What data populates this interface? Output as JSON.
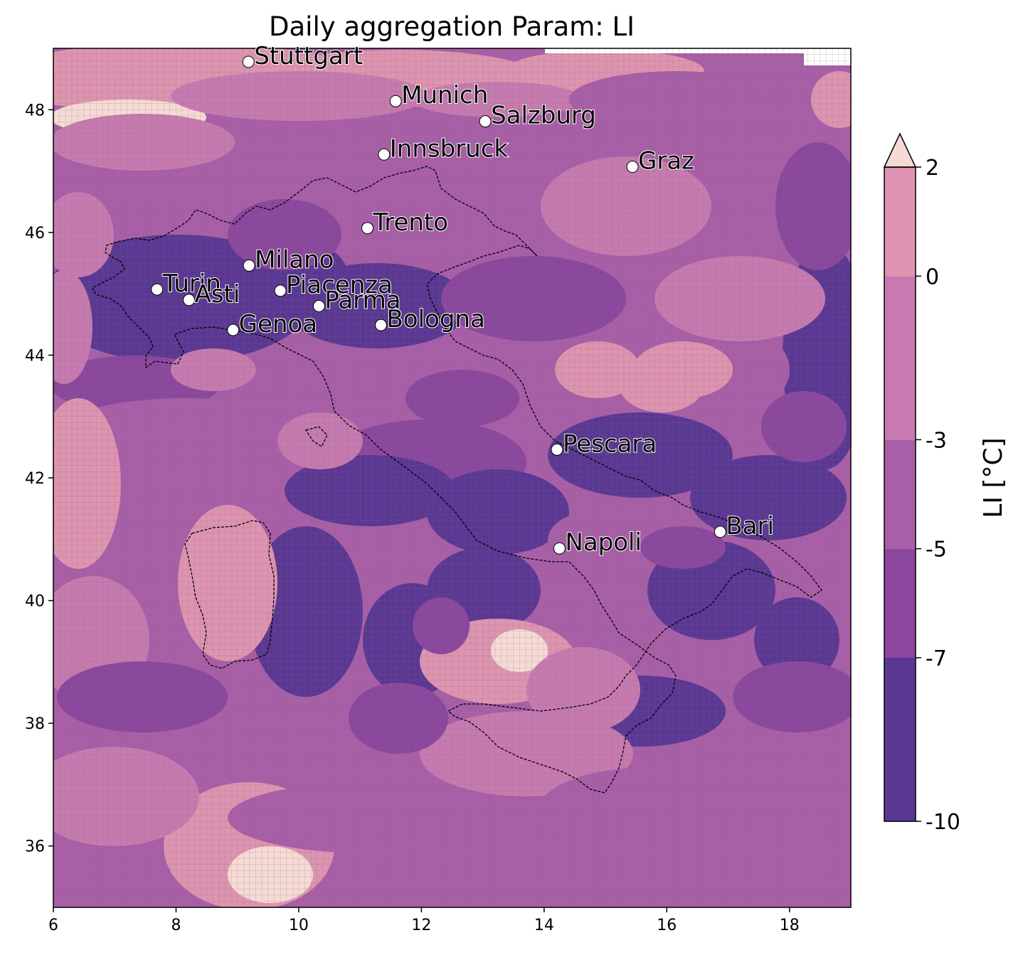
{
  "title": "Daily aggregation Param: LI",
  "map": {
    "lon_range": [
      6,
      19
    ],
    "lat_range": [
      35,
      49
    ],
    "x_ticks": [
      "6",
      "8",
      "10",
      "12",
      "14",
      "16",
      "18"
    ],
    "y_ticks": [
      "36",
      "38",
      "40",
      "42",
      "44",
      "46",
      "48"
    ],
    "grid_resolution_deg": 0.1,
    "cities": [
      {
        "name": "Stuttgart",
        "lon": 9.18,
        "lat": 48.78
      },
      {
        "name": "Munich",
        "lon": 11.58,
        "lat": 48.14
      },
      {
        "name": "Salzburg",
        "lon": 13.04,
        "lat": 47.81
      },
      {
        "name": "Innsbruck",
        "lon": 11.39,
        "lat": 47.27
      },
      {
        "name": "Graz",
        "lon": 15.44,
        "lat": 47.07
      },
      {
        "name": "Trento",
        "lon": 11.12,
        "lat": 46.07
      },
      {
        "name": "Milano",
        "lon": 9.19,
        "lat": 45.46
      },
      {
        "name": "Turin",
        "lon": 7.69,
        "lat": 45.07
      },
      {
        "name": "Asti",
        "lon": 8.21,
        "lat": 44.9
      },
      {
        "name": "Piacenza",
        "lon": 9.7,
        "lat": 45.05
      },
      {
        "name": "Parma",
        "lon": 10.33,
        "lat": 44.8
      },
      {
        "name": "Genoa",
        "lon": 8.93,
        "lat": 44.41
      },
      {
        "name": "Bologna",
        "lon": 11.34,
        "lat": 44.49
      },
      {
        "name": "Pescara",
        "lon": 14.21,
        "lat": 42.46
      },
      {
        "name": "Bari",
        "lon": 16.87,
        "lat": 41.12
      },
      {
        "name": "Napoli",
        "lon": 14.25,
        "lat": 40.85
      }
    ]
  },
  "colorbar": {
    "label": "LI  [°C]",
    "ticks": [
      "-10",
      "-7",
      "-5",
      "-3",
      "0",
      "2"
    ],
    "levels": [
      -10,
      -7,
      -5,
      -3,
      0,
      2
    ],
    "colors": [
      "#5b3794",
      "#8b479e",
      "#a95ea8",
      "#c77ab0",
      "#de94b0",
      "#f6dad4"
    ],
    "extend": "max"
  }
}
